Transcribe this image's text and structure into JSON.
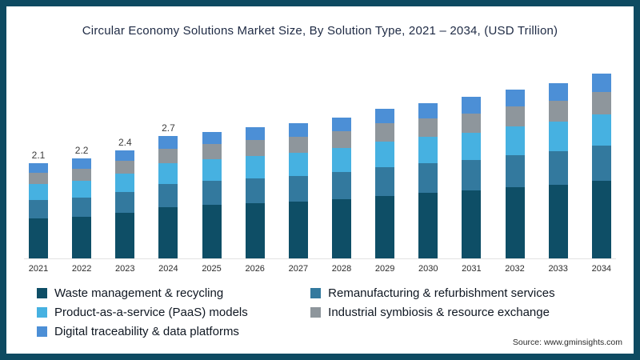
{
  "page": {
    "title": "Circular Economy Solutions Market Size, By Solution Type,  2021 – 2034, (USD Trillion)",
    "source": "Source: www.gminsights.com",
    "frame_color": "#0d4a61"
  },
  "chart_data": {
    "type": "bar",
    "stacked": true,
    "title": "Circular Economy Solutions Market Size, By Solution Type, 2021 – 2034, (USD Trillion)",
    "unit": "USD Trillion",
    "categories": [
      "2021",
      "2022",
      "2023",
      "2024",
      "2025",
      "2026",
      "2027",
      "2028",
      "2029",
      "2030",
      "2031",
      "2032",
      "2033",
      "2034"
    ],
    "bar_total_labels": [
      "2.1",
      "2.2",
      "2.4",
      "2.7",
      "",
      "",
      "",
      "",
      "",
      "",
      "",
      "",
      "",
      ""
    ],
    "totals": [
      2.1,
      2.2,
      2.4,
      2.7,
      2.8,
      2.9,
      3.0,
      3.15,
      3.3,
      3.45,
      3.6,
      3.75,
      3.9,
      4.1
    ],
    "series": [
      {
        "name": "Waste management & recycling",
        "color": "#0e4e66",
        "values": [
          0.88,
          0.92,
          1.01,
          1.13,
          1.18,
          1.22,
          1.26,
          1.32,
          1.39,
          1.45,
          1.51,
          1.58,
          1.64,
          1.72
        ]
      },
      {
        "name": "Remanufacturing & refurbishment services",
        "color": "#33799e",
        "values": [
          0.4,
          0.42,
          0.46,
          0.51,
          0.53,
          0.55,
          0.57,
          0.6,
          0.63,
          0.66,
          0.68,
          0.71,
          0.74,
          0.78
        ]
      },
      {
        "name": "Product-as-a-service (PaaS) models",
        "color": "#46b1e1",
        "values": [
          0.36,
          0.37,
          0.41,
          0.46,
          0.48,
          0.49,
          0.51,
          0.54,
          0.56,
          0.59,
          0.61,
          0.64,
          0.66,
          0.7
        ]
      },
      {
        "name": "Industrial symbiosis & resource exchange",
        "color": "#8e969c",
        "values": [
          0.25,
          0.26,
          0.29,
          0.32,
          0.34,
          0.35,
          0.36,
          0.38,
          0.4,
          0.41,
          0.43,
          0.45,
          0.47,
          0.49
        ]
      },
      {
        "name": "Digital traceability & data platforms",
        "color": "#4c8fd6",
        "values": [
          0.21,
          0.23,
          0.23,
          0.28,
          0.27,
          0.29,
          0.3,
          0.31,
          0.32,
          0.34,
          0.37,
          0.37,
          0.39,
          0.41
        ]
      }
    ],
    "ylim": [
      0,
      4.4
    ],
    "grid": false,
    "legend_position": "bottom",
    "legend_columns": 2
  }
}
